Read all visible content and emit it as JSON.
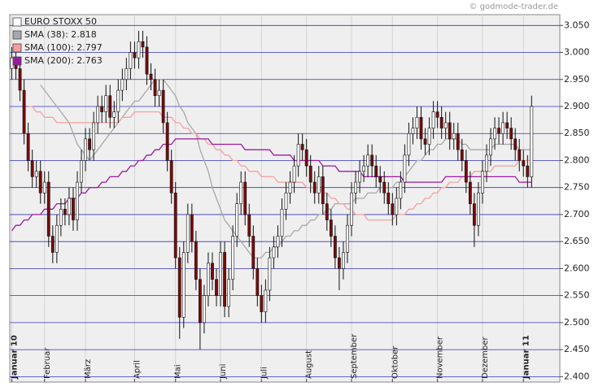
{
  "chart_data": {
    "type": "candlestick",
    "watermark": "© godmode-trader.de",
    "name": "EURO STOXX 50",
    "up_color": "#ffffff",
    "down_color": "#7a0a0a",
    "grid": true,
    "grid_color": "#3333bb",
    "categories": [
      "Januar 10",
      null,
      null,
      null,
      null,
      null,
      null,
      null,
      "Februar",
      null,
      null,
      null,
      null,
      null,
      null,
      null,
      null,
      null,
      "März",
      null,
      null,
      null,
      null,
      null,
      null,
      null,
      null,
      null,
      null,
      null,
      "April",
      null,
      null,
      null,
      null,
      null,
      null,
      null,
      null,
      null,
      "Mai",
      null,
      null,
      null,
      null,
      null,
      null,
      null,
      null,
      null,
      null,
      "Juni",
      null,
      null,
      null,
      null,
      null,
      null,
      null,
      null,
      null,
      "Juli",
      null,
      null,
      null,
      null,
      null,
      null,
      null,
      null,
      null,
      null,
      "August",
      null,
      null,
      null,
      null,
      null,
      null,
      null,
      null,
      null,
      null,
      "September",
      null,
      null,
      null,
      null,
      null,
      null,
      null,
      null,
      null,
      "Oktober",
      null,
      null,
      null,
      null,
      null,
      null,
      null,
      null,
      null,
      null,
      "November",
      null,
      null,
      null,
      null,
      null,
      null,
      null,
      null,
      null,
      null,
      "Dezember",
      null,
      null,
      null,
      null,
      null,
      null,
      null,
      null,
      null,
      "Januar 11",
      null,
      null
    ],
    "open": [
      2.97,
      2.99,
      2.97,
      2.93,
      2.85,
      2.8,
      2.77,
      2.78,
      2.74,
      2.76,
      2.66,
      2.63,
      2.68,
      2.71,
      2.7,
      2.73,
      2.69,
      2.76,
      2.8,
      2.84,
      2.82,
      2.87,
      2.9,
      2.89,
      2.92,
      2.88,
      2.89,
      2.93,
      2.95,
      2.97,
      3.0,
      2.99,
      3.02,
      3.01,
      2.96,
      2.95,
      2.92,
      2.93,
      2.87,
      2.8,
      2.74,
      2.62,
      2.51,
      2.63,
      2.7,
      2.65,
      2.58,
      2.5,
      2.55,
      2.61,
      2.58,
      2.55,
      2.63,
      2.53,
      2.58,
      2.66,
      2.72,
      2.76,
      2.7,
      2.66,
      2.6,
      2.55,
      2.52,
      2.56,
      2.62,
      2.64,
      2.66,
      2.71,
      2.74,
      2.76,
      2.79,
      2.83,
      2.82,
      2.79,
      2.76,
      2.74,
      2.77,
      2.72,
      2.69,
      2.66,
      2.62,
      2.6,
      2.63,
      2.68,
      2.74,
      2.76,
      2.78,
      2.79,
      2.81,
      2.79,
      2.77,
      2.76,
      2.74,
      2.72,
      2.7,
      2.73,
      2.76,
      2.81,
      2.85,
      2.86,
      2.88,
      2.84,
      2.83,
      2.86,
      2.89,
      2.88,
      2.86,
      2.87,
      2.84,
      2.85,
      2.82,
      2.8,
      2.76,
      2.72,
      2.68,
      2.74,
      2.78,
      2.81,
      2.84,
      2.86,
      2.85,
      2.87,
      2.86,
      2.84,
      2.82,
      2.8,
      2.79,
      2.77
    ],
    "high": [
      3.01,
      3.01,
      2.99,
      2.95,
      2.87,
      2.82,
      2.8,
      2.8,
      2.78,
      2.78,
      2.68,
      2.7,
      2.73,
      2.73,
      2.75,
      2.75,
      2.78,
      2.82,
      2.86,
      2.86,
      2.89,
      2.92,
      2.92,
      2.94,
      2.94,
      2.91,
      2.95,
      2.97,
      2.99,
      3.02,
      3.02,
      3.04,
      3.04,
      3.03,
      2.98,
      2.97,
      2.95,
      2.95,
      2.89,
      2.82,
      2.76,
      2.64,
      2.65,
      2.72,
      2.72,
      2.67,
      2.6,
      2.57,
      2.63,
      2.63,
      2.6,
      2.65,
      2.65,
      2.6,
      2.68,
      2.74,
      2.78,
      2.78,
      2.72,
      2.68,
      2.62,
      2.57,
      2.58,
      2.64,
      2.66,
      2.68,
      2.73,
      2.76,
      2.78,
      2.81,
      2.85,
      2.85,
      2.84,
      2.81,
      2.78,
      2.79,
      2.79,
      2.74,
      2.71,
      2.68,
      2.64,
      2.65,
      2.7,
      2.76,
      2.78,
      2.8,
      2.81,
      2.83,
      2.83,
      2.81,
      2.79,
      2.78,
      2.76,
      2.74,
      2.75,
      2.78,
      2.83,
      2.87,
      2.88,
      2.9,
      2.9,
      2.86,
      2.88,
      2.91,
      2.91,
      2.9,
      2.89,
      2.89,
      2.87,
      2.87,
      2.84,
      2.82,
      2.78,
      2.74,
      2.76,
      2.8,
      2.83,
      2.86,
      2.88,
      2.88,
      2.89,
      2.89,
      2.88,
      2.86,
      2.84,
      2.82,
      2.81,
      2.92
    ],
    "low": [
      2.95,
      2.95,
      2.91,
      2.83,
      2.78,
      2.75,
      2.75,
      2.72,
      2.72,
      2.64,
      2.61,
      2.61,
      2.66,
      2.68,
      2.68,
      2.67,
      2.67,
      2.74,
      2.78,
      2.8,
      2.8,
      2.85,
      2.87,
      2.87,
      2.86,
      2.86,
      2.87,
      2.91,
      2.93,
      2.95,
      2.97,
      2.97,
      2.99,
      2.94,
      2.93,
      2.9,
      2.9,
      2.85,
      2.78,
      2.72,
      2.6,
      2.47,
      2.49,
      2.61,
      2.63,
      2.56,
      2.45,
      2.48,
      2.53,
      2.56,
      2.53,
      2.53,
      2.51,
      2.51,
      2.56,
      2.64,
      2.7,
      2.68,
      2.64,
      2.58,
      2.53,
      2.5,
      2.5,
      2.54,
      2.6,
      2.62,
      2.64,
      2.69,
      2.72,
      2.74,
      2.77,
      2.8,
      2.77,
      2.74,
      2.72,
      2.72,
      2.7,
      2.67,
      2.64,
      2.6,
      2.56,
      2.58,
      2.61,
      2.66,
      2.72,
      2.74,
      2.76,
      2.77,
      2.77,
      2.75,
      2.74,
      2.72,
      2.7,
      2.68,
      2.68,
      2.71,
      2.74,
      2.79,
      2.83,
      2.84,
      2.82,
      2.81,
      2.81,
      2.84,
      2.86,
      2.84,
      2.84,
      2.82,
      2.82,
      2.8,
      2.78,
      2.74,
      2.7,
      2.64,
      2.66,
      2.72,
      2.76,
      2.79,
      2.82,
      2.83,
      2.83,
      2.84,
      2.82,
      2.8,
      2.78,
      2.77,
      2.75,
      2.75
    ],
    "close": [
      2.99,
      2.97,
      2.93,
      2.85,
      2.8,
      2.77,
      2.78,
      2.74,
      2.76,
      2.66,
      2.63,
      2.68,
      2.71,
      2.7,
      2.73,
      2.69,
      2.76,
      2.8,
      2.84,
      2.82,
      2.87,
      2.9,
      2.89,
      2.92,
      2.88,
      2.89,
      2.93,
      2.95,
      2.97,
      3.0,
      2.99,
      3.02,
      3.01,
      2.96,
      2.95,
      2.92,
      2.93,
      2.87,
      2.8,
      2.74,
      2.62,
      2.51,
      2.63,
      2.7,
      2.65,
      2.58,
      2.5,
      2.55,
      2.61,
      2.58,
      2.55,
      2.63,
      2.53,
      2.58,
      2.66,
      2.72,
      2.76,
      2.7,
      2.66,
      2.6,
      2.55,
      2.52,
      2.56,
      2.62,
      2.64,
      2.66,
      2.71,
      2.74,
      2.76,
      2.79,
      2.83,
      2.82,
      2.79,
      2.76,
      2.74,
      2.77,
      2.72,
      2.69,
      2.66,
      2.62,
      2.6,
      2.63,
      2.68,
      2.74,
      2.76,
      2.78,
      2.79,
      2.81,
      2.79,
      2.77,
      2.76,
      2.74,
      2.72,
      2.7,
      2.73,
      2.76,
      2.81,
      2.85,
      2.86,
      2.88,
      2.84,
      2.83,
      2.86,
      2.89,
      2.88,
      2.86,
      2.87,
      2.84,
      2.85,
      2.82,
      2.8,
      2.76,
      2.72,
      2.68,
      2.74,
      2.78,
      2.81,
      2.84,
      2.86,
      2.85,
      2.87,
      2.86,
      2.84,
      2.82,
      2.8,
      2.79,
      2.77,
      2.9
    ],
    "series": [
      {
        "name": "SMA (38): 2.818",
        "color": "#a8a8a8",
        "values": [
          null,
          null,
          null,
          null,
          null,
          null,
          null,
          2.94,
          2.93,
          2.92,
          2.91,
          2.9,
          2.89,
          2.88,
          2.87,
          2.85,
          2.83,
          2.82,
          2.81,
          2.8,
          2.81,
          2.82,
          2.83,
          2.84,
          2.85,
          2.86,
          2.87,
          2.88,
          2.89,
          2.9,
          2.91,
          2.91,
          2.92,
          2.93,
          2.94,
          2.95,
          2.95,
          2.95,
          2.94,
          2.93,
          2.92,
          2.9,
          2.89,
          2.87,
          2.86,
          2.85,
          2.82,
          2.8,
          2.78,
          2.75,
          2.73,
          2.71,
          2.69,
          2.68,
          2.67,
          2.66,
          2.65,
          2.64,
          2.63,
          2.62,
          2.62,
          2.62,
          2.63,
          2.63,
          2.64,
          2.64,
          2.65,
          2.66,
          2.66,
          2.67,
          2.67,
          2.68,
          2.68,
          2.69,
          2.69,
          2.7,
          2.7,
          2.71,
          2.71,
          2.72,
          2.72,
          2.72,
          2.72,
          2.72,
          2.73,
          2.73,
          2.73,
          2.74,
          2.74,
          2.74,
          2.75,
          2.75,
          2.75,
          2.75,
          2.76,
          2.76,
          2.77,
          2.78,
          2.79,
          2.8,
          2.8,
          2.81,
          2.82,
          2.82,
          2.83,
          2.83,
          2.84,
          2.84,
          2.84,
          2.84,
          2.83,
          2.83,
          2.82,
          2.82,
          2.82,
          2.82,
          2.82,
          2.82,
          2.83,
          2.83,
          2.83,
          2.83,
          2.83,
          2.83,
          2.82,
          2.82,
          2.82,
          2.82
        ]
      },
      {
        "name": "SMA (100): 2.797",
        "color": "#f4a0a0",
        "values": [
          null,
          null,
          null,
          null,
          2.9,
          2.9,
          2.89,
          2.89,
          2.88,
          2.88,
          2.88,
          2.87,
          2.87,
          2.87,
          2.87,
          2.87,
          2.87,
          2.87,
          2.87,
          2.87,
          2.87,
          2.87,
          2.87,
          2.87,
          2.87,
          2.87,
          2.87,
          2.88,
          2.88,
          2.88,
          2.89,
          2.89,
          2.89,
          2.89,
          2.89,
          2.89,
          2.89,
          2.88,
          2.88,
          2.88,
          2.87,
          2.87,
          2.86,
          2.86,
          2.85,
          2.85,
          2.84,
          2.84,
          2.83,
          2.83,
          2.82,
          2.82,
          2.81,
          2.81,
          2.8,
          2.8,
          2.79,
          2.79,
          2.78,
          2.78,
          2.78,
          2.77,
          2.77,
          2.77,
          2.77,
          2.76,
          2.76,
          2.76,
          2.76,
          2.76,
          2.76,
          2.76,
          2.75,
          2.75,
          2.75,
          2.75,
          2.74,
          2.74,
          2.73,
          2.73,
          2.72,
          2.72,
          2.71,
          2.71,
          2.7,
          2.7,
          2.7,
          2.69,
          2.69,
          2.69,
          2.69,
          2.69,
          2.69,
          2.69,
          2.7,
          2.7,
          2.7,
          2.71,
          2.71,
          2.72,
          2.72,
          2.73,
          2.73,
          2.74,
          2.74,
          2.75,
          2.75,
          2.76,
          2.76,
          2.76,
          2.77,
          2.77,
          2.77,
          2.78,
          2.78,
          2.78,
          2.78,
          2.78,
          2.79,
          2.79,
          2.79,
          2.79,
          2.79,
          2.79,
          2.8,
          2.8,
          2.8,
          2.8
        ]
      },
      {
        "name": "SMA (200): 2.763",
        "color": "#9c1aa0",
        "values": [
          2.67,
          2.68,
          2.68,
          2.69,
          2.69,
          2.7,
          2.7,
          2.7,
          2.71,
          2.71,
          2.71,
          2.72,
          2.72,
          2.72,
          2.73,
          2.73,
          2.73,
          2.74,
          2.74,
          2.75,
          2.75,
          2.75,
          2.76,
          2.76,
          2.77,
          2.77,
          2.77,
          2.78,
          2.78,
          2.79,
          2.79,
          2.8,
          2.8,
          2.81,
          2.81,
          2.82,
          2.82,
          2.83,
          2.83,
          2.83,
          2.84,
          2.84,
          2.84,
          2.84,
          2.84,
          2.84,
          2.84,
          2.84,
          2.84,
          2.83,
          2.83,
          2.83,
          2.83,
          2.83,
          2.83,
          2.83,
          2.83,
          2.82,
          2.82,
          2.82,
          2.82,
          2.82,
          2.82,
          2.82,
          2.81,
          2.81,
          2.81,
          2.81,
          2.81,
          2.8,
          2.8,
          2.8,
          2.8,
          2.8,
          2.8,
          2.8,
          2.79,
          2.79,
          2.79,
          2.79,
          2.78,
          2.78,
          2.78,
          2.78,
          2.78,
          2.78,
          2.77,
          2.77,
          2.77,
          2.77,
          2.77,
          2.77,
          2.77,
          2.77,
          2.77,
          2.77,
          2.76,
          2.76,
          2.76,
          2.76,
          2.76,
          2.76,
          2.76,
          2.76,
          2.76,
          2.76,
          2.77,
          2.77,
          2.77,
          2.77,
          2.77,
          2.77,
          2.77,
          2.77,
          2.77,
          2.77,
          2.77,
          2.77,
          2.77,
          2.77,
          2.77,
          2.77,
          2.77,
          2.77,
          2.76,
          2.76,
          2.76,
          2.76
        ]
      }
    ],
    "ylim": [
      2.39,
      3.07
    ],
    "yticks": [
      {
        "value": 3.05,
        "label": "3.050"
      },
      {
        "value": 3.0,
        "label": "3.000"
      },
      {
        "value": 2.95,
        "label": "2.950"
      },
      {
        "value": 2.9,
        "label": "2.900"
      },
      {
        "value": 2.85,
        "label": "2.850"
      },
      {
        "value": 2.8,
        "label": "2.800"
      },
      {
        "value": 2.75,
        "label": "2.750"
      },
      {
        "value": 2.7,
        "label": "2.700"
      },
      {
        "value": 2.65,
        "label": "2.650"
      },
      {
        "value": 2.6,
        "label": "2.600"
      },
      {
        "value": 2.55,
        "label": "2.550"
      },
      {
        "value": 2.5,
        "label": "2.500"
      },
      {
        "value": 2.45,
        "label": "2.450"
      },
      {
        "value": 2.4,
        "label": "2.400"
      }
    ]
  }
}
